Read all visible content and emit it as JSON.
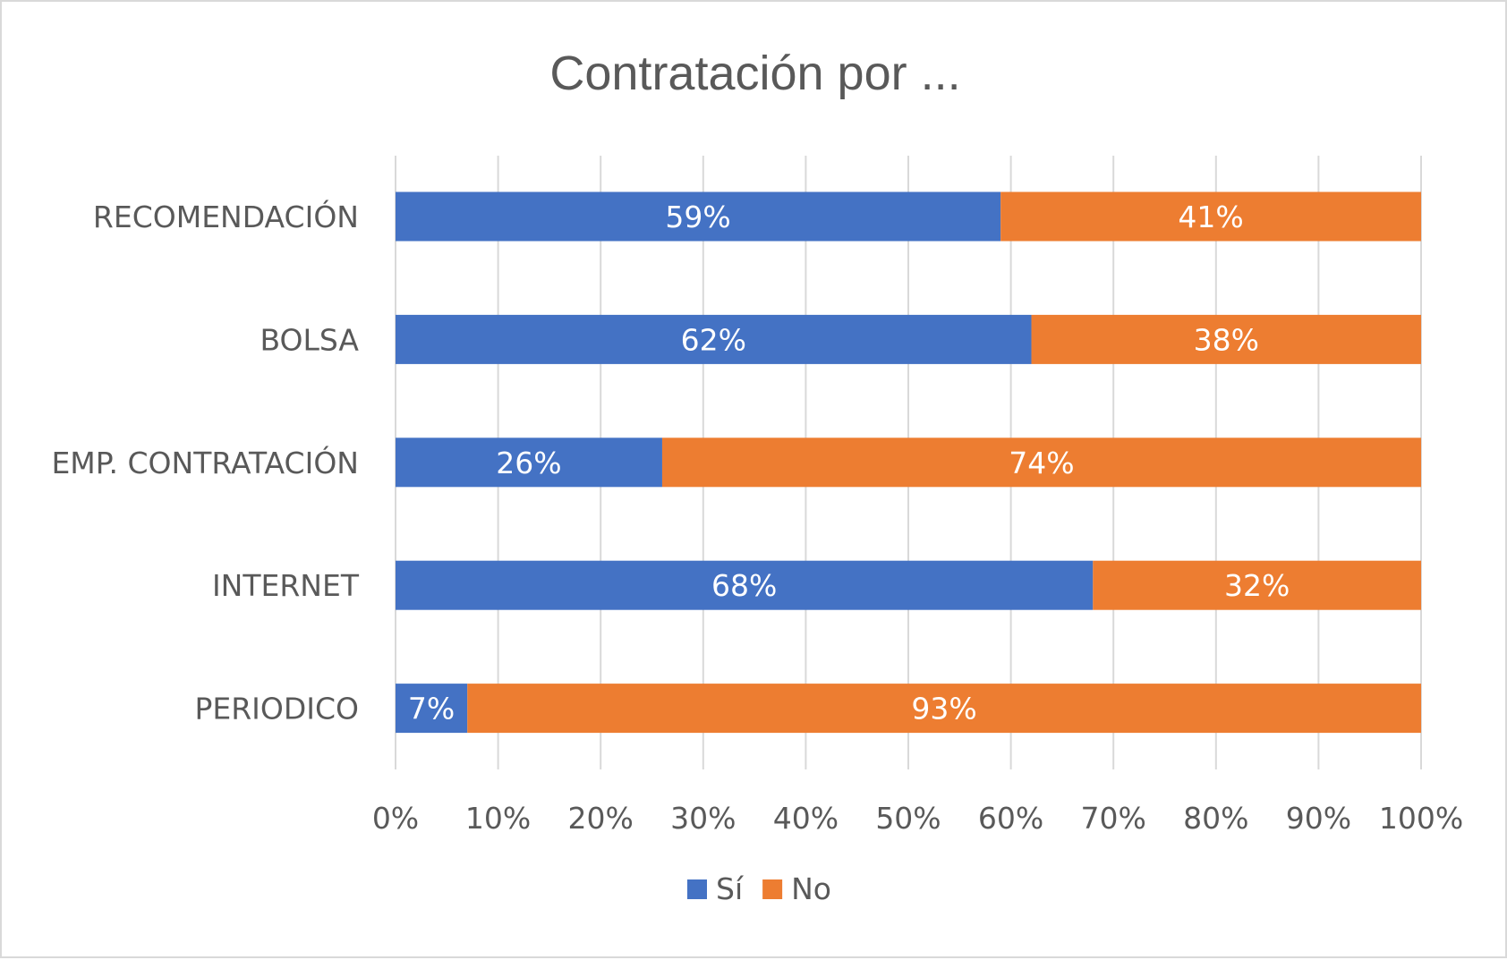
{
  "chart_data": {
    "type": "bar",
    "orientation": "horizontal",
    "stacked": true,
    "title": "Contratación por ...",
    "categories": [
      "RECOMENDACIÓN",
      "BOLSA",
      "EMP. CONTRATACIÓN",
      "INTERNET",
      "PERIODICO"
    ],
    "series": [
      {
        "name": "Sí",
        "color": "#4472c4",
        "values": [
          59,
          62,
          26,
          68,
          7
        ],
        "labels": [
          "59%",
          "62%",
          "26%",
          "68%",
          "7%"
        ]
      },
      {
        "name": "No",
        "color": "#ed7d31",
        "values": [
          41,
          38,
          74,
          32,
          93
        ],
        "labels": [
          "41%",
          "38%",
          "74%",
          "32%",
          "93%"
        ]
      }
    ],
    "xlim": [
      0,
      100
    ],
    "x_ticks": [
      0,
      10,
      20,
      30,
      40,
      50,
      60,
      70,
      80,
      90,
      100
    ],
    "x_tick_labels": [
      "0%",
      "10%",
      "20%",
      "30%",
      "40%",
      "50%",
      "60%",
      "70%",
      "80%",
      "90%",
      "100%"
    ],
    "grid": true,
    "legend_position": "bottom",
    "grid_color": "#d9d9d9",
    "text_color": "#595959"
  }
}
